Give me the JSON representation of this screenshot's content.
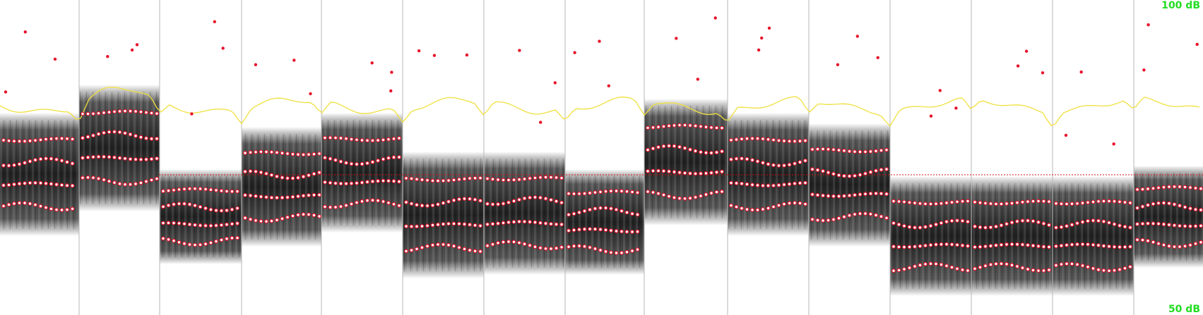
{
  "labels": {
    "top_db": "100 dB",
    "bottom_db": "50 dB"
  },
  "colors": {
    "db_label": "#22dd22",
    "intensity_curve": "#f0e040",
    "pitch_reference": "#d01010",
    "formant_marker": "#e8102a",
    "spectrogram_dark": "#141414",
    "segment_boundary": "#bbbbbb"
  },
  "icons": {
    "spectrogram": "spectrogram-band-icon",
    "formant": "formant-dot-icon"
  }
}
